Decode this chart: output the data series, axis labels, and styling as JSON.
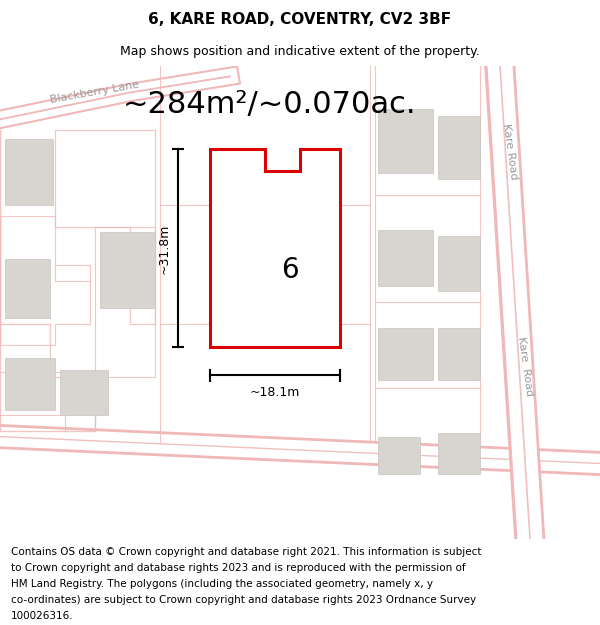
{
  "title_line1": "6, KARE ROAD, COVENTRY, CV2 3BF",
  "title_line2": "Map shows position and indicative extent of the property.",
  "area_text": "~284m²/~0.070ac.",
  "label_number": "6",
  "dim_height": "~31.8m",
  "dim_width": "~18.1m",
  "footer_lines": [
    "Contains OS data © Crown copyright and database right 2021. This information is subject",
    "to Crown copyright and database rights 2023 and is reproduced with the permission of",
    "HM Land Registry. The polygons (including the associated geometry, namely x, y",
    "co-ordinates) are subject to Crown copyright and database rights 2023 Ordnance Survey",
    "100026316."
  ],
  "map_bg": "#ffffff",
  "plot_outline_color": "#dd0000",
  "plot_fill_color": "#ffffff",
  "road_color": "#f0b8b8",
  "road_line_color": "#e8a0a0",
  "building_color": "#d8d5d0",
  "building_edge_color": "#c8c5c0",
  "dim_line_color": "#000000",
  "label_color": "#999999",
  "title_fontsize": 11,
  "subtitle_fontsize": 9,
  "area_fontsize": 22,
  "number_fontsize": 20,
  "footer_fontsize": 7.5,
  "street_fontsize": 8
}
